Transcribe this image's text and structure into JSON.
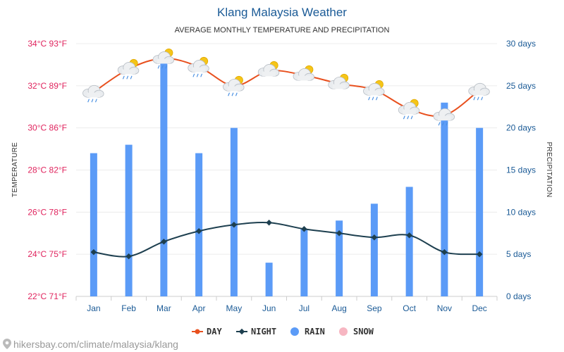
{
  "chart_data": {
    "type": "bar-line-combo",
    "title": "Klang Malaysia Weather",
    "subtitle": "AVERAGE MONTHLY TEMPERATURE AND PRECIPITATION",
    "categories": [
      "Jan",
      "Feb",
      "Mar",
      "Apr",
      "May",
      "Jun",
      "Jul",
      "Aug",
      "Sep",
      "Oct",
      "Nov",
      "Dec"
    ],
    "left_axis": {
      "label": "TEMPERATURE",
      "range": [
        22,
        34
      ],
      "ticks": [
        {
          "value": 22,
          "label": "22°C 71°F"
        },
        {
          "value": 24,
          "label": "24°C 75°F"
        },
        {
          "value": 26,
          "label": "26°C 78°F"
        },
        {
          "value": 28,
          "label": "28°C 82°F"
        },
        {
          "value": 30,
          "label": "30°C 86°F"
        },
        {
          "value": 32,
          "label": "32°C 89°F"
        },
        {
          "value": 34,
          "label": "34°C 93°F"
        }
      ]
    },
    "right_axis": {
      "label": "PRECIPITATION",
      "range": [
        0,
        30
      ],
      "ticks": [
        {
          "value": 0,
          "label": "0 days"
        },
        {
          "value": 5,
          "label": "5 days"
        },
        {
          "value": 10,
          "label": "10 days"
        },
        {
          "value": 15,
          "label": "15 days"
        },
        {
          "value": 20,
          "label": "20 days"
        },
        {
          "value": 25,
          "label": "25 days"
        },
        {
          "value": 30,
          "label": "30 days"
        }
      ]
    },
    "series": [
      {
        "name": "DAY",
        "kind": "line",
        "axis": "left",
        "color": "#e8501e",
        "values": [
          31.7,
          32.8,
          33.3,
          32.9,
          32.0,
          32.7,
          32.5,
          32.1,
          31.8,
          30.9,
          30.6,
          31.8
        ]
      },
      {
        "name": "NIGHT",
        "kind": "line",
        "axis": "left",
        "color": "#1d3f4f",
        "values": [
          24.1,
          23.9,
          24.6,
          25.1,
          25.4,
          25.5,
          25.2,
          25.0,
          24.8,
          24.9,
          24.1,
          24.0
        ]
      },
      {
        "name": "RAIN",
        "kind": "bar",
        "axis": "right",
        "color": "#5b9bf7",
        "values": [
          17,
          18,
          28,
          17,
          20,
          4,
          8,
          9,
          11,
          13,
          23,
          20
        ]
      },
      {
        "name": "SNOW",
        "kind": "bar",
        "axis": "right",
        "color": "#f7b6c2",
        "values": [
          0,
          0,
          0,
          0,
          0,
          0,
          0,
          0,
          0,
          0,
          0,
          0
        ]
      }
    ],
    "weather_icons": [
      "cloud-rain-icon",
      "cloud-sun-rain-icon",
      "cloud-sun-rain-icon",
      "cloud-sun-rain-icon",
      "cloud-sun-rain-icon",
      "sun-cloud-icon",
      "sun-cloud-icon",
      "sun-cloud-icon",
      "cloud-sun-rain-icon",
      "cloud-sun-rain-icon",
      "cloud-rain-icon",
      "cloud-rain-icon"
    ],
    "grid": true,
    "legend_position": "bottom-center"
  },
  "footer": {
    "source_text": "hikersbay.com/climate/malaysia/klang"
  }
}
